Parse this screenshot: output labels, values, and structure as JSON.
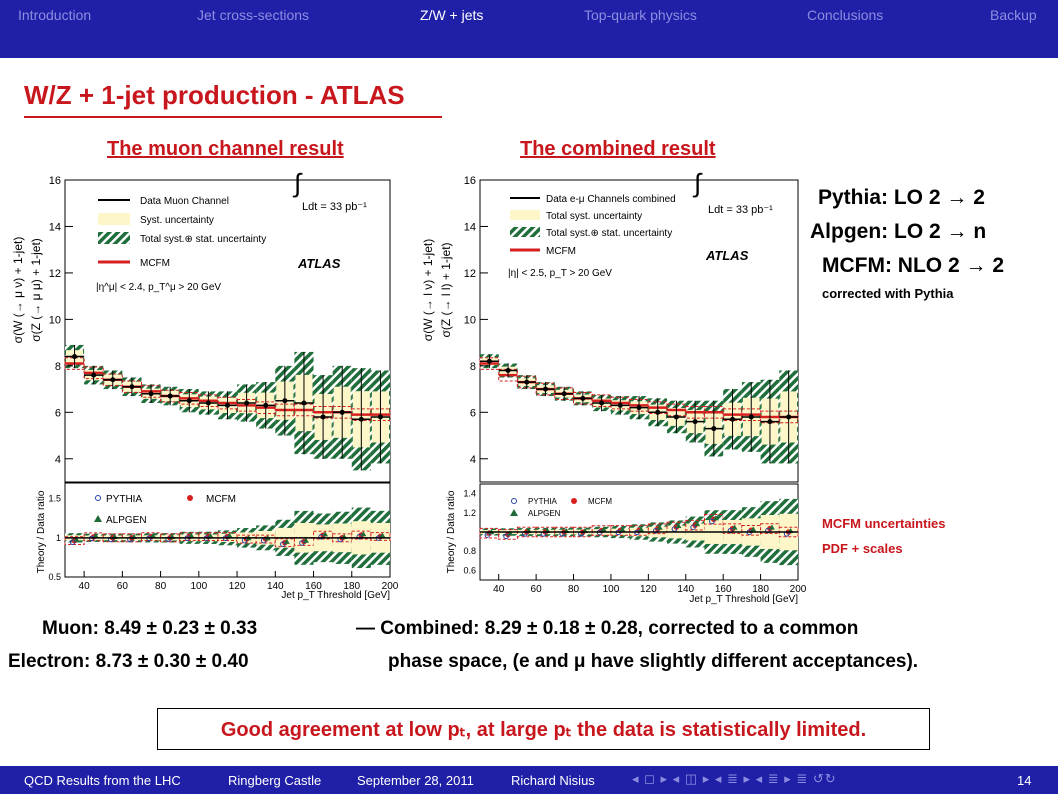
{
  "nav": {
    "items": [
      "Introduction",
      "Jet cross-sections",
      "Z/W + jets",
      "Top-quark physics",
      "Conclusions",
      "Backup"
    ],
    "active_index": 2
  },
  "slide": {
    "title": "W/Z + 1-jet production - ATLAS",
    "left_subtitle": "The muon channel result",
    "right_subtitle": "The combined result"
  },
  "left_plot": {
    "ylabel_top": "σ(W (→ μ ν) + 1-jet)",
    "ylabel_bottom": "σ(Z (→ μ μ) + 1-jet)",
    "legend": [
      "Data Muon Channel",
      "Syst. uncertainty",
      "Total syst.⊕ stat. uncertainty",
      "MCFM"
    ],
    "lumi": "Ldt = 33 pb⁻¹",
    "atlas": "ATLAS",
    "cut": "|η^μ| < 2.4, p_T^μ > 20 GeV",
    "ratio_ylabel": "Theory / Data ratio",
    "ratio_legend": [
      "PYTHIA",
      "MCFM",
      "ALPGEN"
    ],
    "xlabel": "Jet p_T Threshold [GeV]"
  },
  "right_plot": {
    "ylabel_top": "σ(W (→ l ν) + 1-jet)",
    "ylabel_bottom": "σ(Z (→ l l) + 1-jet)",
    "legend": [
      "Data e-μ Channels combined",
      "Total syst. uncertainty",
      "Total syst.⊕ stat. uncertainty",
      "MCFM"
    ],
    "lumi": "Ldt = 33 pb⁻¹",
    "atlas": "ATLAS",
    "cut": "|η| < 2.5, p_T > 20 GeV",
    "ratio_ylabel": "Theory / Data ratio",
    "ratio_legend": [
      "PYTHIA",
      "MCFM",
      "ALPGEN"
    ],
    "xlabel": "Jet p_T Threshold [GeV]"
  },
  "right_text": {
    "pythia": "Pythia: LO 2 → 2",
    "alpgen": "Alpgen: LO 2 → n",
    "mcfm": "MCFM: NLO 2 → 2",
    "corrected": "corrected with Pythia",
    "mcfm_unc": "MCFM uncertainties",
    "pdf": "PDF + scales"
  },
  "results": {
    "muon": "Muon: 8.49 ± 0.23 ± 0.33",
    "combined": "— Combined: 8.29 ± 0.18 ± 0.28, corrected to a common",
    "electron": "Electron: 8.73 ± 0.30 ± 0.40",
    "phase": "phase space, (e and μ have slightly different acceptances)."
  },
  "conclusion": "Good agreement at low pₜ, at large pₜ the data is statistically limited.",
  "footer": {
    "items": [
      "QCD Results from the LHC",
      "Ringberg Castle",
      "September 28, 2011",
      "Richard Nisius"
    ],
    "nav_symbols": "◂ ◻ ▸ ◂ ◫ ▸ ◂ ≣ ▸ ◂ ≣ ▸   ≣   ↺↻",
    "page": "14"
  },
  "chart_data": [
    {
      "type": "line",
      "title": "The muon channel result",
      "xlabel": "Jet p_T Threshold [GeV]",
      "ylabel": "σ(W (→ μ ν) + 1-jet) / σ(Z (→ μ μ) + 1-jet)",
      "xlim": [
        30,
        200
      ],
      "ylim": [
        3,
        16
      ],
      "x": [
        35,
        45,
        55,
        65,
        75,
        85,
        95,
        105,
        115,
        125,
        135,
        145,
        155,
        165,
        175,
        185,
        195
      ],
      "series": [
        {
          "name": "Data Muon Channel",
          "values": [
            8.4,
            7.6,
            7.4,
            7.1,
            6.8,
            6.7,
            6.5,
            6.4,
            6.3,
            6.4,
            6.3,
            6.5,
            6.4,
            5.8,
            6.0,
            5.7,
            5.8
          ],
          "err": [
            0.5,
            0.4,
            0.4,
            0.4,
            0.4,
            0.4,
            0.5,
            0.5,
            0.6,
            0.8,
            1.0,
            1.5,
            2.2,
            1.8,
            2.0,
            2.2,
            2.0
          ]
        },
        {
          "name": "MCFM",
          "values": [
            8.1,
            7.7,
            7.4,
            7.1,
            6.9,
            6.7,
            6.6,
            6.5,
            6.4,
            6.3,
            6.2,
            6.1,
            6.1,
            6.0,
            6.0,
            5.9,
            5.9
          ]
        }
      ],
      "ratio": {
        "ylabel": "Theory / Data ratio",
        "ylim": [
          0.5,
          1.7
        ],
        "ticks": [
          0.5,
          1,
          1.5
        ]
      }
    },
    {
      "type": "line",
      "title": "The combined result",
      "xlabel": "Jet p_T Threshold [GeV]",
      "ylabel": "σ(W (→ l ν) + 1-jet) / σ(Z (→ l l) + 1-jet)",
      "xlim": [
        30,
        200
      ],
      "ylim": [
        3,
        16
      ],
      "x": [
        35,
        45,
        55,
        65,
        75,
        85,
        95,
        105,
        115,
        125,
        135,
        145,
        155,
        165,
        175,
        185,
        195
      ],
      "series": [
        {
          "name": "Data e-μ Channels combined",
          "values": [
            8.2,
            7.8,
            7.3,
            7.0,
            6.8,
            6.6,
            6.4,
            6.3,
            6.2,
            6.0,
            5.8,
            5.6,
            5.3,
            5.7,
            5.8,
            5.6,
            5.8
          ],
          "err": [
            0.3,
            0.3,
            0.3,
            0.3,
            0.3,
            0.3,
            0.35,
            0.4,
            0.5,
            0.6,
            0.7,
            0.9,
            1.2,
            1.3,
            1.5,
            1.8,
            2.0
          ]
        },
        {
          "name": "MCFM",
          "values": [
            8.1,
            7.6,
            7.3,
            7.0,
            6.8,
            6.6,
            6.5,
            6.4,
            6.3,
            6.2,
            6.1,
            6.0,
            6.0,
            5.9,
            5.9,
            5.8,
            5.8
          ]
        }
      ],
      "ratio": {
        "ylabel": "Theory / Data ratio",
        "ylim": [
          0.5,
          1.5
        ],
        "ticks": [
          0.6,
          0.8,
          1.2,
          1.4
        ]
      }
    }
  ]
}
